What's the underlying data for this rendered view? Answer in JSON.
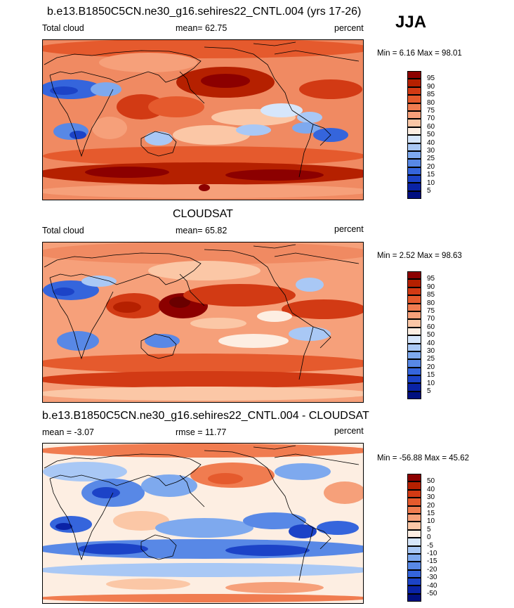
{
  "season": "JJA",
  "panels": [
    {
      "title": "b.e13.B1850C5CN.ne30_g16.sehires22_CNTL.004 (yrs 17-26)",
      "left_label": "Total cloud",
      "center_label": "mean=  62.75",
      "right_label": "percent",
      "minmax": "Min =   6.16 Max =  98.01",
      "levels": [
        "95",
        "90",
        "85",
        "80",
        "75",
        "70",
        "60",
        "50",
        "40",
        "30",
        "25",
        "20",
        "15",
        "10",
        "5"
      ],
      "colors": [
        "#8c0000",
        "#b52000",
        "#d23a14",
        "#e55a2d",
        "#f07c50",
        "#f6a07a",
        "#fbc7a6",
        "#fdeee2",
        "#d6e6fb",
        "#a9c8f5",
        "#7ea9ee",
        "#5888e6",
        "#3565dc",
        "#1c43c7",
        "#0a23a6",
        "#000f80"
      ]
    },
    {
      "title": "CLOUDSAT",
      "left_label": "Total cloud",
      "center_label": "mean=  65.82",
      "right_label": "percent",
      "minmax": "Min =   2.52 Max =  98.63",
      "levels": [
        "95",
        "90",
        "85",
        "80",
        "75",
        "70",
        "60",
        "50",
        "40",
        "30",
        "25",
        "20",
        "15",
        "10",
        "5"
      ],
      "colors": [
        "#8c0000",
        "#b52000",
        "#d23a14",
        "#e55a2d",
        "#f07c50",
        "#f6a07a",
        "#fbc7a6",
        "#fdeee2",
        "#d6e6fb",
        "#a9c8f5",
        "#7ea9ee",
        "#5888e6",
        "#3565dc",
        "#1c43c7",
        "#0a23a6",
        "#000f80"
      ]
    },
    {
      "title": "b.e13.B1850C5CN.ne30_g16.sehires22_CNTL.004 - CLOUDSAT",
      "left_label": "mean =  -3.07",
      "center_label": "rmse =  11.77",
      "right_label": "percent",
      "minmax": "Min = -56.88 Max =  45.62",
      "levels": [
        "50",
        "40",
        "30",
        "20",
        "15",
        "10",
        "5",
        "0",
        "-5",
        "-10",
        "-15",
        "-20",
        "-30",
        "-40",
        "-50"
      ],
      "colors": [
        "#8c0000",
        "#b52000",
        "#d23a14",
        "#e55a2d",
        "#f07c50",
        "#f6a07a",
        "#fbc7a6",
        "#fdeee2",
        "#d6e6fb",
        "#a9c8f5",
        "#7ea9ee",
        "#5888e6",
        "#3565dc",
        "#1c43c7",
        "#0a23a6",
        "#000f80"
      ]
    }
  ]
}
